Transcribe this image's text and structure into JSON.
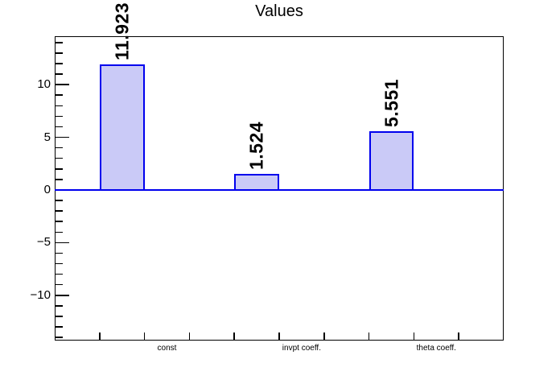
{
  "chart_data": {
    "type": "bar",
    "title": "Values",
    "categories": [
      "const",
      "invpt coeff.",
      "theta coeff."
    ],
    "values": [
      11.923,
      1.524,
      5.551
    ],
    "value_labels": [
      "11.923",
      "1.524",
      "5.551"
    ],
    "ylim": [
      -14.3,
      14.6
    ],
    "yticks": [
      -10,
      -5,
      0,
      5,
      10
    ],
    "ytick_labels": [
      "−10",
      "−5",
      "0",
      "5",
      "10"
    ],
    "minor_tick_step": 1,
    "n_bins": 10,
    "bar_bins": [
      2,
      5,
      8
    ],
    "label_bins": [
      3,
      6,
      9
    ],
    "grid": false,
    "legend": "none",
    "colors": {
      "bar_fill": "#cacaf7",
      "bar_border": "#0000ee",
      "zero_line": "#0000ee",
      "axis": "#000000",
      "text": "#000000"
    }
  }
}
